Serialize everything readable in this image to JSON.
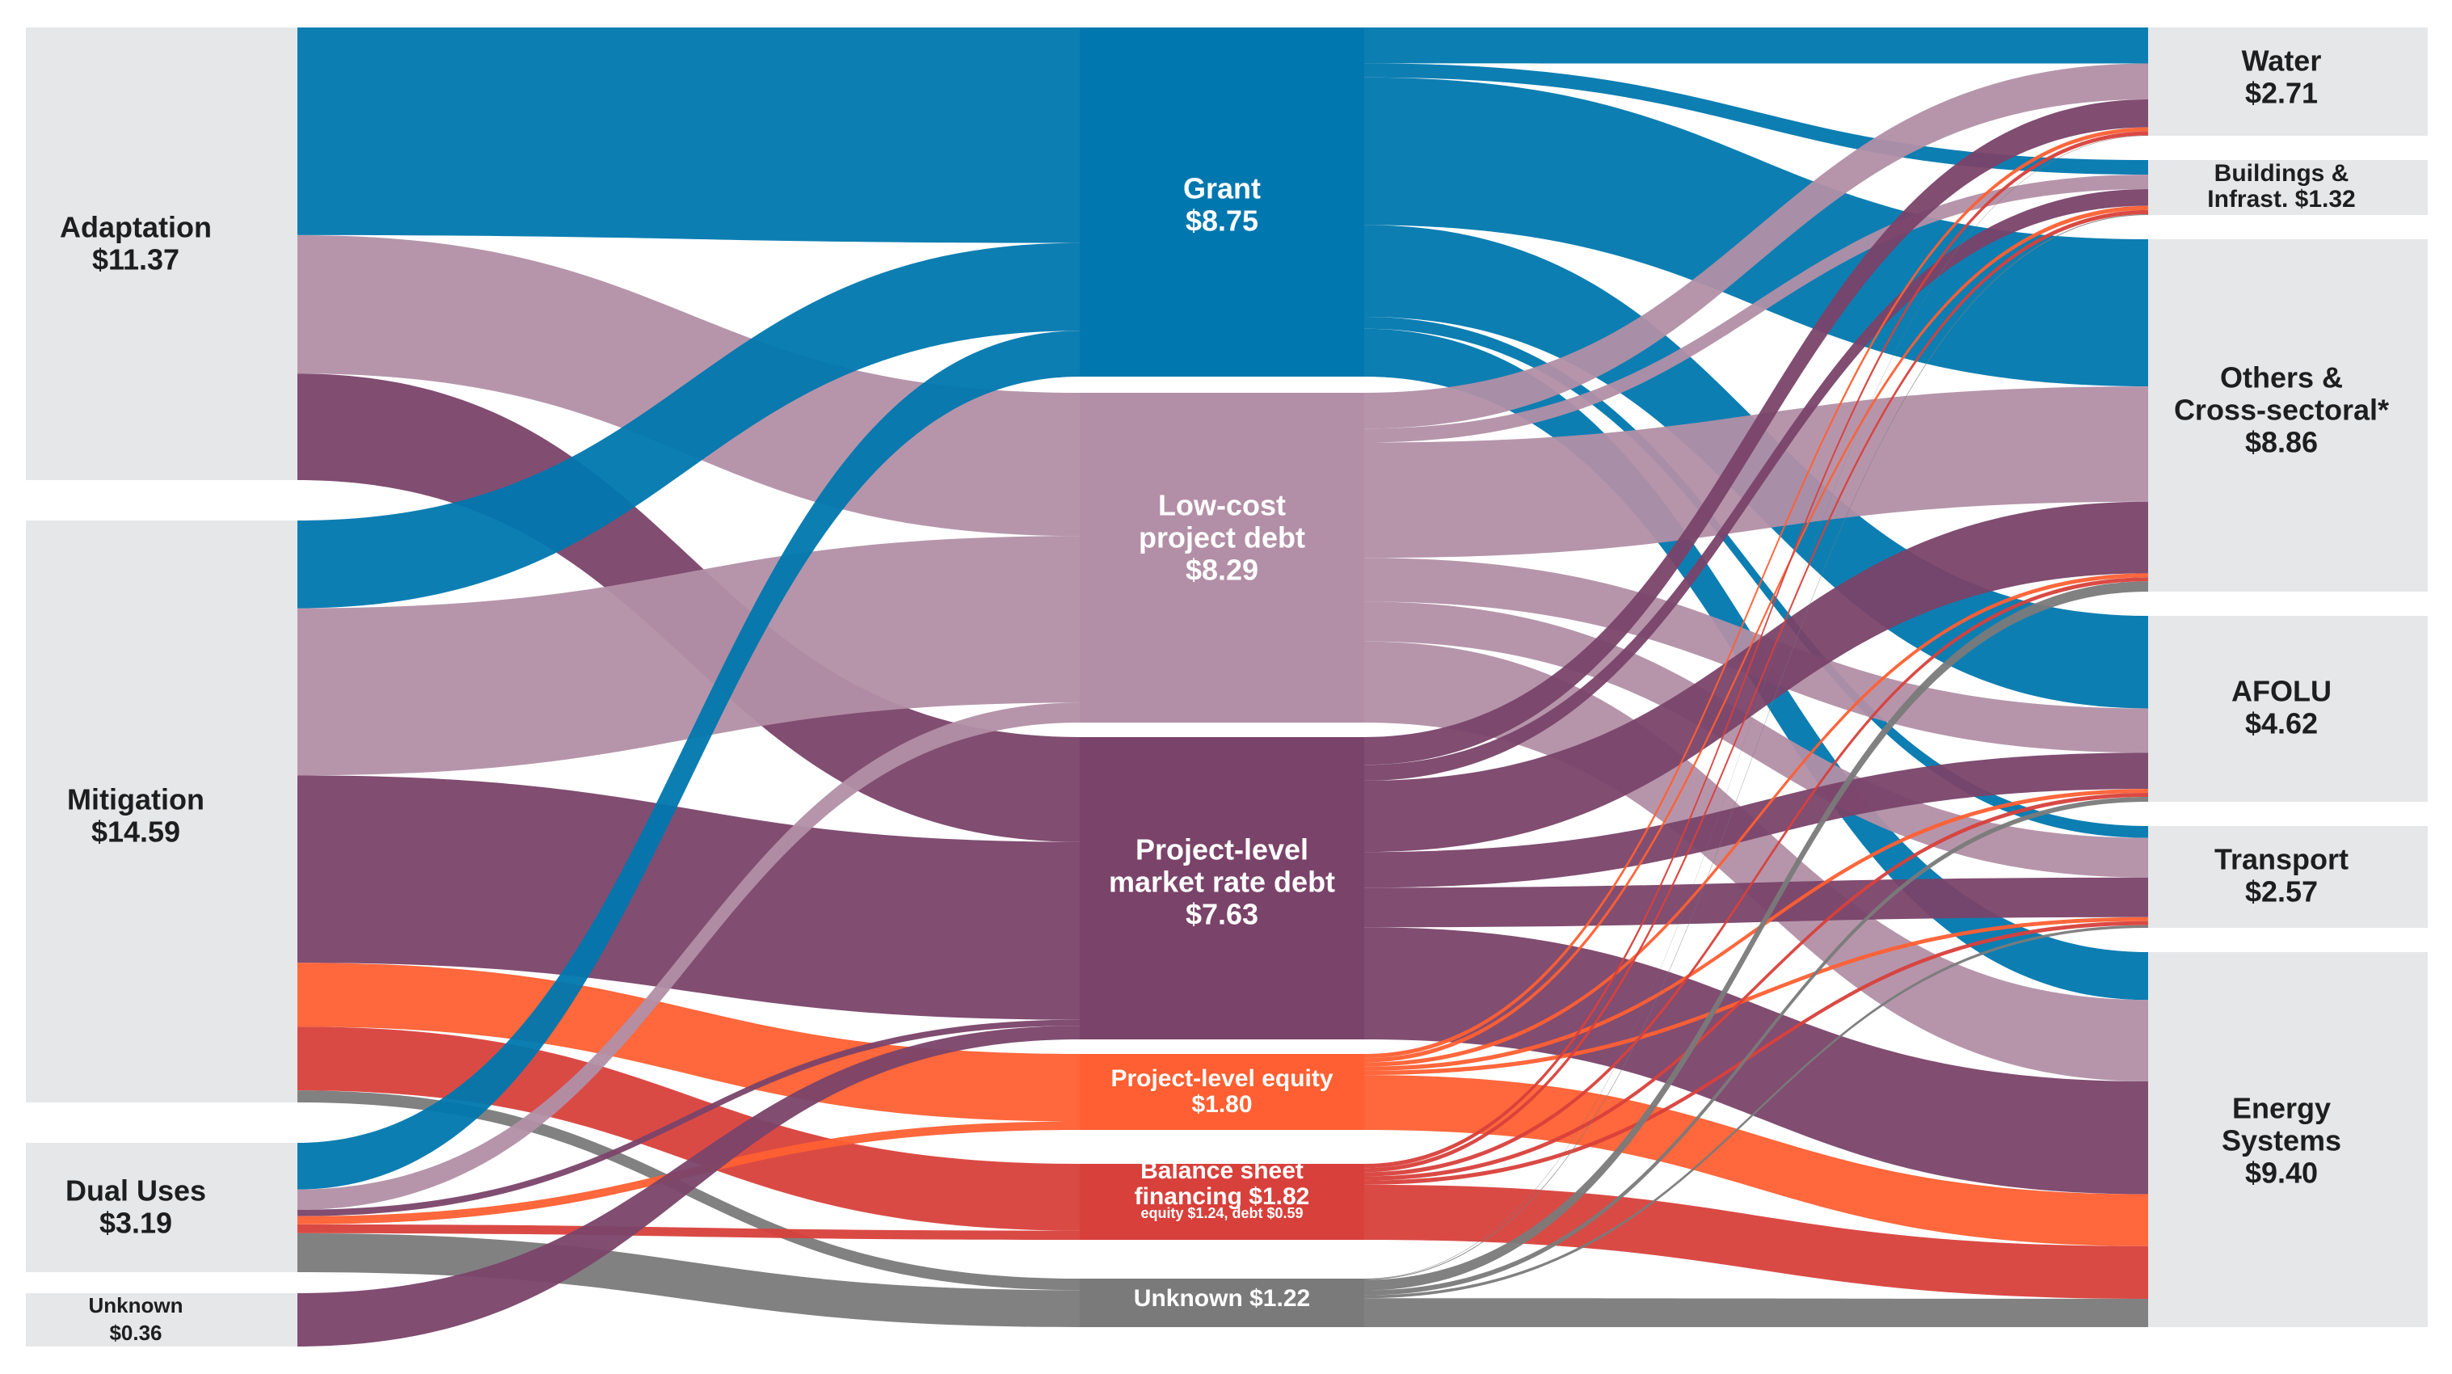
{
  "chart_data": {
    "type": "sankey",
    "units": "$",
    "colors": {
      "grant": "#0077AE",
      "low_cost_debt": "#B28FA6",
      "market_debt": "#7A4369",
      "equity": "#FF5F32",
      "balance_sheet": "#D8403B",
      "unknown": "#7A7A7A",
      "node_panel": "#E6E7E9",
      "label_dark": "#1E1E1E",
      "label_light": "#FFFFFF"
    },
    "sources": [
      {
        "id": "adaptation",
        "label": "Adaptation",
        "value_label": "$11.37",
        "value": 11.37
      },
      {
        "id": "mitigation",
        "label": "Mitigation",
        "value_label": "$14.59",
        "value": 14.59
      },
      {
        "id": "dual",
        "label": "Dual Uses",
        "value_label": "$3.19",
        "value": 3.19
      },
      {
        "id": "unknown_use",
        "label": "Unknown",
        "value_label": "$0.36",
        "value": 0.36
      }
    ],
    "instruments": [
      {
        "id": "grant",
        "lines": [
          "Grant",
          "$8.75"
        ],
        "value": 8.75,
        "color": "grant"
      },
      {
        "id": "lcd",
        "lines": [
          "Low-cost",
          "project debt",
          "$8.29"
        ],
        "value": 8.29,
        "color": "low_cost_debt"
      },
      {
        "id": "mrd",
        "lines": [
          "Project-level",
          "market rate debt",
          "$7.63"
        ],
        "value": 7.63,
        "color": "market_debt"
      },
      {
        "id": "eq",
        "lines": [
          "Project-level equity",
          "$1.80"
        ],
        "value": 1.8,
        "color": "equity"
      },
      {
        "id": "bs",
        "lines": [
          "Balance sheet",
          "financing $1.82"
        ],
        "sub": "equity $1.24, debt $0.59",
        "value": 1.82,
        "color": "balance_sheet"
      },
      {
        "id": "unk",
        "lines": [
          "Unknown $1.22"
        ],
        "value": 1.22,
        "color": "unknown"
      }
    ],
    "sectors": [
      {
        "id": "water",
        "lines": [
          "Water",
          "$2.71"
        ],
        "value": 2.71
      },
      {
        "id": "bldg",
        "lines": [
          "Buildings &",
          "Infrast. $1.32"
        ],
        "value": 1.32
      },
      {
        "id": "others",
        "lines": [
          "Others &",
          "Cross-sectoral*",
          "$8.86"
        ],
        "value": 8.86
      },
      {
        "id": "afolu",
        "lines": [
          "AFOLU",
          "$4.62"
        ],
        "value": 4.62
      },
      {
        "id": "transport",
        "lines": [
          "Transport",
          "$2.57"
        ],
        "value": 2.57
      },
      {
        "id": "energy",
        "lines": [
          "Energy",
          "Systems",
          "$9.40"
        ],
        "value": 9.4
      }
    ],
    "flows_left": [
      {
        "from": "adaptation",
        "to": "grant",
        "value": 5.4
      },
      {
        "from": "adaptation",
        "to": "lcd",
        "value": 3.6
      },
      {
        "from": "adaptation",
        "to": "mrd",
        "value": 2.77
      },
      {
        "from": "mitigation",
        "to": "grant",
        "value": 2.2
      },
      {
        "from": "mitigation",
        "to": "lcd",
        "value": 4.19
      },
      {
        "from": "mitigation",
        "to": "mrd",
        "value": 4.7
      },
      {
        "from": "mitigation",
        "to": "eq",
        "value": 1.6
      },
      {
        "from": "mitigation",
        "to": "bs",
        "value": 1.6
      },
      {
        "from": "mitigation",
        "to": "unk",
        "value": 0.3
      },
      {
        "from": "dual",
        "to": "grant",
        "value": 1.15
      },
      {
        "from": "dual",
        "to": "lcd",
        "value": 0.5
      },
      {
        "from": "dual",
        "to": "mrd",
        "value": 0.16
      },
      {
        "from": "dual",
        "to": "eq",
        "value": 0.2
      },
      {
        "from": "dual",
        "to": "bs",
        "value": 0.22
      },
      {
        "from": "dual",
        "to": "unk",
        "value": 0.96
      },
      {
        "from": "unknown_use",
        "to": "mrd",
        "value": 0.36
      }
    ],
    "flows_right": [
      {
        "from": "grant",
        "to": "water",
        "value": 0.9
      },
      {
        "from": "grant",
        "to": "bldg",
        "value": 0.35
      },
      {
        "from": "grant",
        "to": "others",
        "value": 3.7
      },
      {
        "from": "grant",
        "to": "afolu",
        "value": 2.3
      },
      {
        "from": "grant",
        "to": "transport",
        "value": 0.3
      },
      {
        "from": "grant",
        "to": "energy",
        "value": 1.2
      },
      {
        "from": "lcd",
        "to": "water",
        "value": 0.9
      },
      {
        "from": "lcd",
        "to": "bldg",
        "value": 0.35
      },
      {
        "from": "lcd",
        "to": "others",
        "value": 2.9
      },
      {
        "from": "lcd",
        "to": "afolu",
        "value": 1.1
      },
      {
        "from": "lcd",
        "to": "transport",
        "value": 1.0
      },
      {
        "from": "lcd",
        "to": "energy",
        "value": 2.04
      },
      {
        "from": "mrd",
        "to": "water",
        "value": 0.7
      },
      {
        "from": "mrd",
        "to": "bldg",
        "value": 0.4
      },
      {
        "from": "mrd",
        "to": "others",
        "value": 1.8
      },
      {
        "from": "mrd",
        "to": "afolu",
        "value": 0.9
      },
      {
        "from": "mrd",
        "to": "transport",
        "value": 1.0
      },
      {
        "from": "mrd",
        "to": "energy",
        "value": 2.83
      },
      {
        "from": "eq",
        "to": "water",
        "value": 0.1
      },
      {
        "from": "eq",
        "to": "bldg",
        "value": 0.1
      },
      {
        "from": "eq",
        "to": "others",
        "value": 0.1
      },
      {
        "from": "eq",
        "to": "afolu",
        "value": 0.1
      },
      {
        "from": "eq",
        "to": "transport",
        "value": 0.1
      },
      {
        "from": "eq",
        "to": "energy",
        "value": 1.3
      },
      {
        "from": "bs",
        "to": "water",
        "value": 0.1
      },
      {
        "from": "bs",
        "to": "bldg",
        "value": 0.1
      },
      {
        "from": "bs",
        "to": "others",
        "value": 0.1
      },
      {
        "from": "bs",
        "to": "afolu",
        "value": 0.1
      },
      {
        "from": "bs",
        "to": "transport",
        "value": 0.1
      },
      {
        "from": "bs",
        "to": "energy",
        "value": 1.32
      },
      {
        "from": "unk",
        "to": "water",
        "value": 0.01
      },
      {
        "from": "unk",
        "to": "bldg",
        "value": 0.02
      },
      {
        "from": "unk",
        "to": "others",
        "value": 0.26
      },
      {
        "from": "unk",
        "to": "afolu",
        "value": 0.12
      },
      {
        "from": "unk",
        "to": "transport",
        "value": 0.07
      },
      {
        "from": "unk",
        "to": "energy",
        "value": 0.71
      }
    ]
  }
}
